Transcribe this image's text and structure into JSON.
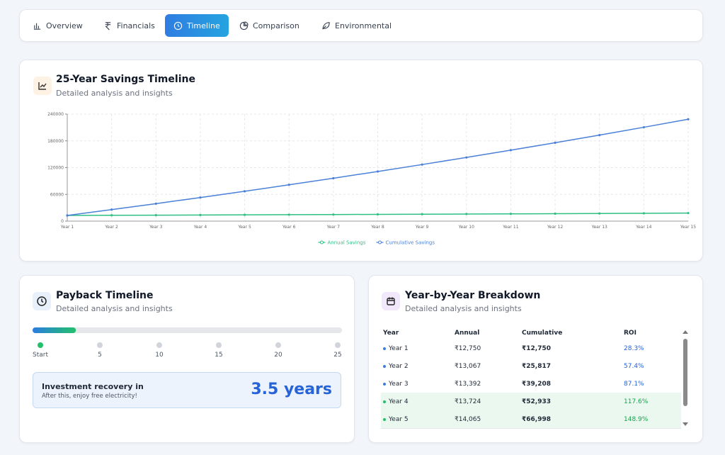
{
  "tabs": [
    {
      "label": "Overview",
      "active": false
    },
    {
      "label": "Financials",
      "active": false
    },
    {
      "label": "Timeline",
      "active": true
    },
    {
      "label": "Comparison",
      "active": false
    },
    {
      "label": "Environmental",
      "active": false
    }
  ],
  "chart_data": {
    "type": "line",
    "title": "25-Year Savings Timeline",
    "subtitle": "Detailed analysis and insights",
    "categories": [
      "Year 1",
      "Year 2",
      "Year 3",
      "Year 4",
      "Year 5",
      "Year 6",
      "Year 7",
      "Year 8",
      "Year 9",
      "Year 10",
      "Year 11",
      "Year 12",
      "Year 13",
      "Year 14",
      "Year 15"
    ],
    "series": [
      {
        "name": "Annual Savings",
        "color": "#2fbf83",
        "values": [
          12750,
          13067,
          13392,
          13724,
          14065,
          14417,
          14777,
          15146,
          15525,
          15913,
          16311,
          16719,
          17137,
          17565,
          18004
        ]
      },
      {
        "name": "Cumulative Savings",
        "color": "#4a80d8",
        "values": [
          12750,
          25817,
          39208,
          52933,
          66998,
          81415,
          96192,
          111338,
          126863,
          142776,
          159087,
          175806,
          192943,
          210508,
          228512
        ]
      }
    ],
    "ylim": [
      0,
      240000
    ],
    "yticks": [
      0,
      60000,
      120000,
      180000,
      240000
    ],
    "grid": true,
    "legend": "bottom"
  },
  "payback": {
    "title": "Payback Timeline",
    "subtitle": "Detailed analysis and insights",
    "scale": [
      {
        "value": 0,
        "label": "Start"
      },
      5,
      10,
      15,
      20,
      25
    ],
    "recovery": {
      "value": 3.5,
      "label": "3.5 years"
    },
    "box_title": "Investment recovery in",
    "box_note": "After this, enjoy free electricity!"
  },
  "breakdown": {
    "title": "Year-by-Year Breakdown",
    "subtitle": "Detailed analysis and insights",
    "columns": [
      "Year",
      "Annual",
      "Cumulative",
      "ROI"
    ],
    "rows": [
      [
        "Year 1",
        "₹12,750",
        "₹12,750",
        "28.3%"
      ],
      [
        "Year 2",
        "₹13,067",
        "₹25,817",
        "57.4%"
      ],
      [
        "Year 3",
        "₹13,392",
        "₹39,208",
        "87.1%"
      ],
      [
        "Year 4",
        "₹13,724",
        "₹52,933",
        "117.6%"
      ],
      [
        "Year 5",
        "₹14,065",
        "₹66,998",
        "148.9%"
      ]
    ],
    "highlighted_rows": [
      3,
      4
    ]
  }
}
